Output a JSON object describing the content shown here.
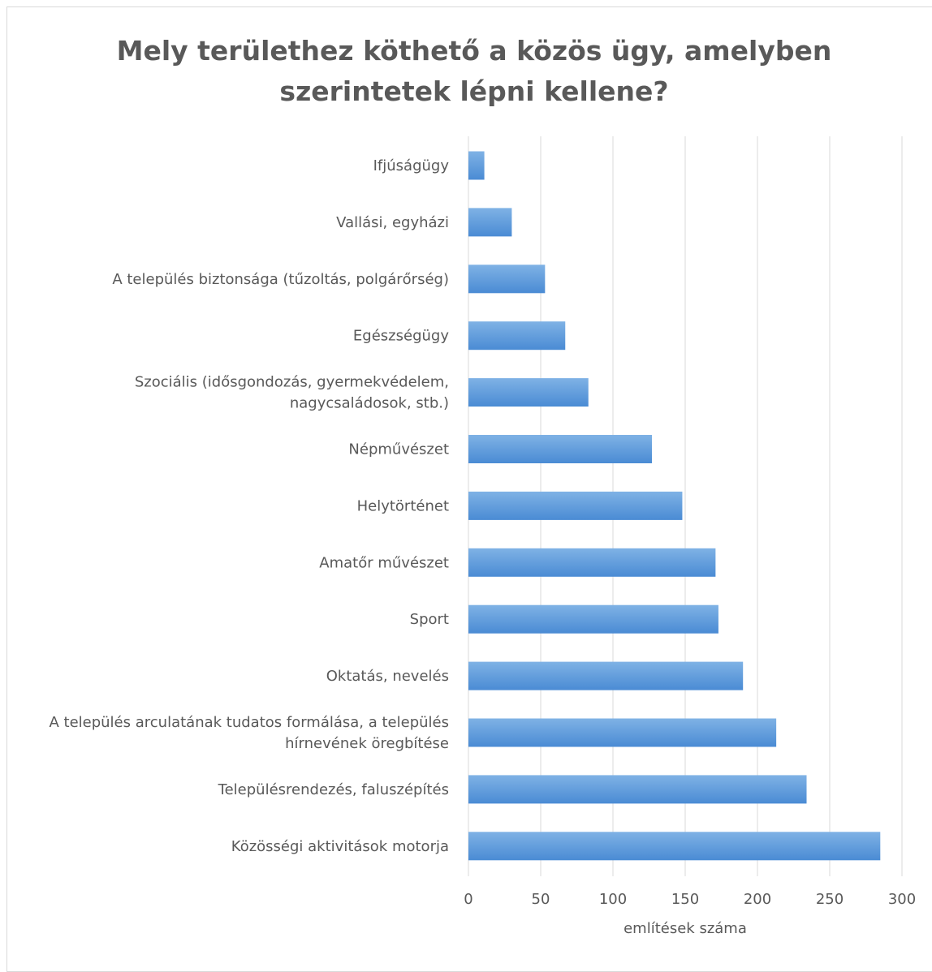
{
  "chart_data": {
    "type": "bar",
    "orientation": "horizontal",
    "title": "Mely területhez köthető a közös ügy, amelyben szerintetek lépni kellene?",
    "title_lines": [
      "Mely területhez köthető a közös ügy, amelyben",
      "szerintetek lépni kellene?"
    ],
    "categories": [
      "Ifjúságügy",
      "Vallási, egyházi",
      "A település biztonsága (tűzoltás, polgárőrség)",
      "Egészségügy",
      "Szociális (idősgondozás, gyermekvédelem, nagycsaládosok, stb.)",
      "Népművészet",
      "Helytörténet",
      "Amatőr művészet",
      "Sport",
      "Oktatás, nevelés",
      "A település arculatának tudatos formálása, a település hírnevének öregbítése",
      "Településrendezés, faluszépítés",
      "Közösségi aktivitások motorja"
    ],
    "category_label_lines": [
      [
        "Ifjúságügy"
      ],
      [
        "Vallási, egyházi"
      ],
      [
        "A település biztonsága (tűzoltás, polgárőrség)"
      ],
      [
        "Egészségügy"
      ],
      [
        "Szociális (idősgondozás, gyermekvédelem,",
        "nagycsaládosok, stb.)"
      ],
      [
        "Népművészet"
      ],
      [
        "Helytörténet"
      ],
      [
        "Amatőr művészet"
      ],
      [
        "Sport"
      ],
      [
        "Oktatás, nevelés"
      ],
      [
        "A település arculatának tudatos formálása, a település",
        "hírnevének öregbítése"
      ],
      [
        "Településrendezés, faluszépítés"
      ],
      [
        "Közösségi aktivitások motorja"
      ]
    ],
    "values": [
      11,
      30,
      53,
      67,
      83,
      127,
      148,
      171,
      173,
      190,
      213,
      234,
      285
    ],
    "xlabel": "említések száma",
    "ylabel": "",
    "xlim": [
      0,
      300
    ],
    "xticks": [
      "0",
      "50",
      "100",
      "150",
      "200",
      "250",
      "300"
    ],
    "grid": true,
    "legend": "none",
    "colors": {
      "bar_light": "#7fb2e5",
      "bar_dark": "#4a8bd4",
      "grid": "#d9d9d9",
      "text": "#595959"
    }
  }
}
